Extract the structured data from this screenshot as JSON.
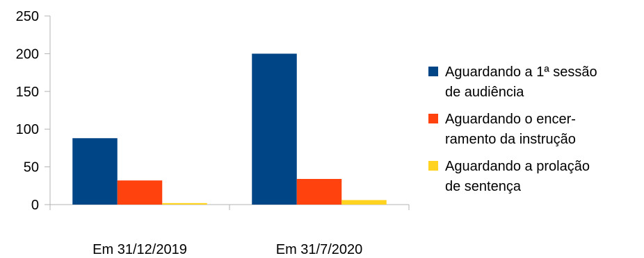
{
  "chart_data": {
    "type": "bar",
    "title": "",
    "xlabel": "",
    "ylabel": "",
    "categories": [
      "Em 31/12/2019",
      "Em 31/7/2020"
    ],
    "ylim": [
      0,
      250
    ],
    "yticks": [
      0,
      50,
      100,
      150,
      200,
      250
    ],
    "grid": "none",
    "legend_position": "right",
    "series": [
      {
        "name": "Aguardando a 1ª sessão de audiência",
        "name_lines": [
          "Aguardando a 1ª sessão",
          "de audiência"
        ],
        "color": "#004586",
        "values": [
          88,
          200
        ]
      },
      {
        "name": "Aguardando o encer-ramento da instrução",
        "name_lines": [
          "Aguardando o encer-",
          "ramento da instrução"
        ],
        "color": "#ff420e",
        "values": [
          32,
          34
        ]
      },
      {
        "name": "Aguardando a prolação de sentença",
        "name_lines": [
          "Aguardando a prolação",
          "de sentença"
        ],
        "color": "#ffd320",
        "values": [
          2,
          6
        ]
      }
    ]
  }
}
